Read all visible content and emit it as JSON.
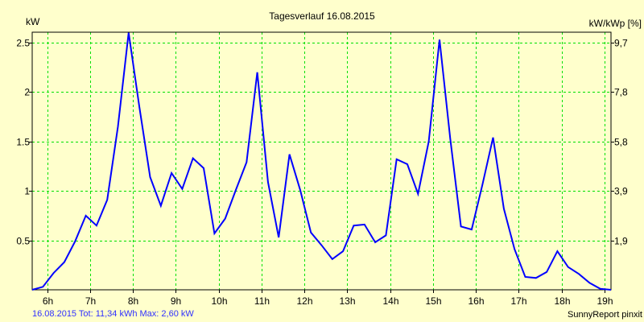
{
  "chart_data": {
    "type": "line",
    "title": "Tagesverlauf 16.08.2015",
    "ylabel": "kW",
    "ylabel_right": "kW/kWp [%]",
    "xlim": [
      5.65,
      19.15
    ],
    "ylim": [
      0,
      2.605
    ],
    "grid": true,
    "x_ticks": [
      {
        "value": 6,
        "label": "6h"
      },
      {
        "value": 7,
        "label": "7h"
      },
      {
        "value": 8,
        "label": "8h"
      },
      {
        "value": 9,
        "label": "9h"
      },
      {
        "value": 10,
        "label": "10h"
      },
      {
        "value": 11,
        "label": "11h"
      },
      {
        "value": 12,
        "label": "12h"
      },
      {
        "value": 13,
        "label": "13h"
      },
      {
        "value": 14,
        "label": "14h"
      },
      {
        "value": 15,
        "label": "15h"
      },
      {
        "value": 16,
        "label": "16h"
      },
      {
        "value": 17,
        "label": "17h"
      },
      {
        "value": 18,
        "label": "18h"
      },
      {
        "value": 19,
        "label": "19h"
      }
    ],
    "y_ticks": [
      {
        "value": 0.5,
        "label": "0.5",
        "right_label": "1,9"
      },
      {
        "value": 1,
        "label": "1",
        "right_label": "3,9"
      },
      {
        "value": 1.5,
        "label": "1.5",
        "right_label": "5,8"
      },
      {
        "value": 2,
        "label": "2",
        "right_label": "7,8"
      },
      {
        "value": 2.5,
        "label": "2.5",
        "right_label": "9,7"
      }
    ],
    "series": [
      {
        "name": "kW",
        "color": "#0000ff",
        "x_start": 5.65,
        "x_step": 0.25,
        "values": [
          0.0,
          0.03,
          0.17,
          0.28,
          0.49,
          0.75,
          0.65,
          0.91,
          1.65,
          2.6,
          1.85,
          1.14,
          0.85,
          1.18,
          1.02,
          1.33,
          1.23,
          0.57,
          0.72,
          1.01,
          1.29,
          2.2,
          1.09,
          0.53,
          1.37,
          1.01,
          0.58,
          0.45,
          0.31,
          0.39,
          0.65,
          0.66,
          0.48,
          0.55,
          1.32,
          1.27,
          0.97,
          1.5,
          2.53,
          1.53,
          0.64,
          0.61,
          1.06,
          1.54,
          0.82,
          0.41,
          0.13,
          0.12,
          0.18,
          0.39,
          0.23,
          0.16,
          0.07,
          0.01,
          0.0
        ]
      }
    ],
    "grid_color": "#00e000",
    "background": "#ffffcc",
    "footer_left": "16.08.2015 Tot: 11,34 kWh Max: 2,60 kW",
    "footer_right": "SunnyReport pinxit"
  }
}
